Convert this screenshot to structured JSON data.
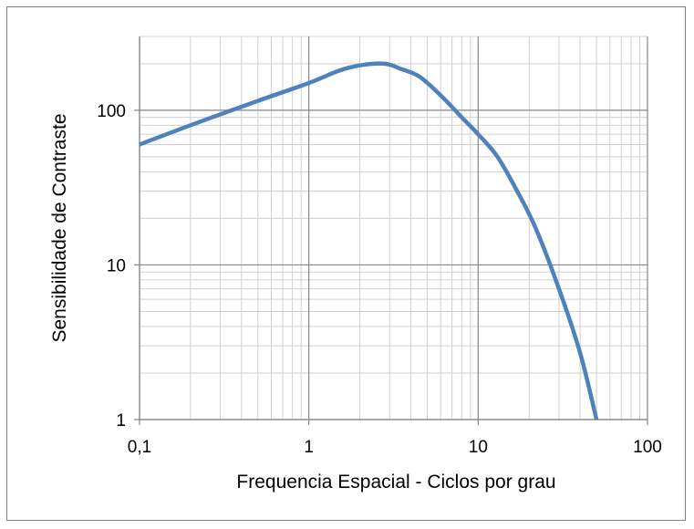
{
  "chart_data": {
    "type": "line",
    "title": "",
    "xlabel": "Frequencia Espacial - Ciclos por grau",
    "ylabel": "Sensibilidade de Contraste",
    "x_scale": "log",
    "y_scale": "log",
    "xlim": [
      0.1,
      100
    ],
    "ylim": [
      1,
      300
    ],
    "x_ticks": [
      {
        "value": 0.1,
        "label": "0,1"
      },
      {
        "value": 1,
        "label": "1"
      },
      {
        "value": 10,
        "label": "10"
      },
      {
        "value": 100,
        "label": "100"
      }
    ],
    "y_ticks": [
      {
        "value": 1,
        "label": "1"
      },
      {
        "value": 10,
        "label": "10"
      },
      {
        "value": 100,
        "label": "100"
      }
    ],
    "grid": true,
    "legend": "none",
    "series": [
      {
        "color": "#4f81bd",
        "x": [
          0.1,
          0.2,
          0.5,
          1,
          1.5,
          2,
          2.8,
          3.5,
          4.5,
          6,
          8,
          10,
          13,
          17,
          22,
          30,
          40,
          50
        ],
        "y": [
          60,
          80,
          115,
          150,
          180,
          195,
          200,
          185,
          165,
          125,
          90,
          70,
          50,
          30,
          17,
          7,
          2.7,
          1
        ]
      }
    ]
  }
}
